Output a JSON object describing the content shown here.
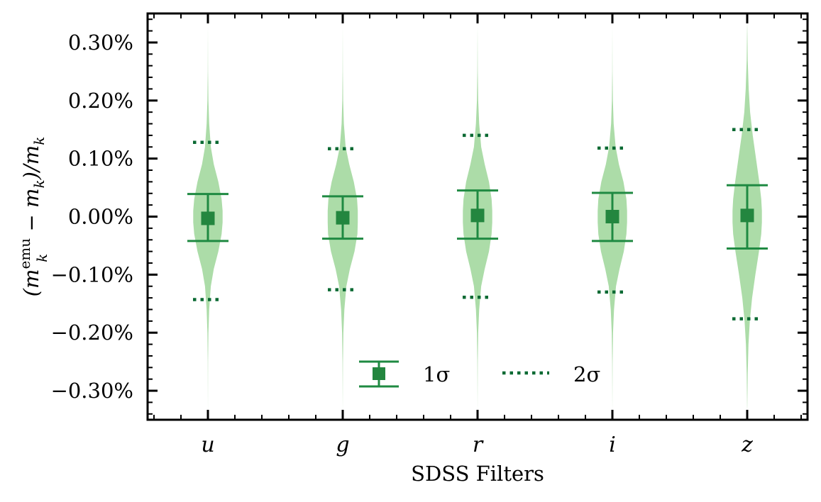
{
  "colors": {
    "violin_fill": "#acdca8",
    "marker": "#23863f",
    "errorbar": "#1f8a42",
    "dotted": "#0b6a33",
    "axis": "#000000"
  },
  "chart_data": {
    "type": "violin",
    "xlabel": "SDSS Filters",
    "ylabel": "(m_k^emu − m_k)/m_k",
    "ylabel_parts": {
      "open": "(m",
      "sup": "emu",
      "sub1": "k",
      "mid": " − m",
      "sub2": "k",
      "close": ")/m",
      "sub3": "k"
    },
    "categories": [
      "u",
      "g",
      "r",
      "i",
      "z"
    ],
    "ylim": [
      -0.35,
      0.35
    ],
    "y_unit": "%",
    "yticks": [
      -0.3,
      -0.2,
      -0.1,
      0.0,
      0.1,
      0.2,
      0.3
    ],
    "ytick_labels": [
      "−0.30%",
      "−0.20%",
      "−0.10%",
      "0.00%",
      "0.10%",
      "0.20%",
      "0.30%"
    ],
    "series": [
      {
        "name": "1σ",
        "kind": "median-errorbar",
        "center": [
          -0.003,
          -0.002,
          0.002,
          0.0,
          0.002
        ],
        "lower": [
          -0.042,
          -0.038,
          -0.038,
          -0.042,
          -0.055
        ],
        "upper": [
          0.039,
          0.035,
          0.045,
          0.041,
          0.054
        ]
      },
      {
        "name": "2σ",
        "kind": "dotted-bounds",
        "lower": [
          -0.143,
          -0.126,
          -0.139,
          -0.13,
          -0.176
        ],
        "upper": [
          0.128,
          0.117,
          0.14,
          0.118,
          0.15
        ]
      }
    ],
    "violins": [
      {
        "category": "u",
        "ys": [
          -0.33,
          -0.25,
          -0.2,
          -0.16,
          -0.12,
          -0.09,
          -0.06,
          -0.03,
          -0.01,
          0.01,
          0.03,
          0.06,
          0.09,
          0.12,
          0.16,
          0.2,
          0.25,
          0.33
        ],
        "widths": [
          0.001,
          0.005,
          0.015,
          0.04,
          0.09,
          0.18,
          0.32,
          0.42,
          0.45,
          0.45,
          0.42,
          0.32,
          0.18,
          0.09,
          0.04,
          0.015,
          0.005,
          0.001
        ]
      },
      {
        "category": "g",
        "ys": [
          -0.33,
          -0.25,
          -0.2,
          -0.16,
          -0.12,
          -0.09,
          -0.06,
          -0.03,
          -0.01,
          0.01,
          0.03,
          0.06,
          0.09,
          0.12,
          0.16,
          0.2,
          0.25,
          0.33
        ],
        "widths": [
          0.001,
          0.006,
          0.02,
          0.05,
          0.11,
          0.22,
          0.36,
          0.45,
          0.46,
          0.46,
          0.44,
          0.34,
          0.2,
          0.09,
          0.035,
          0.012,
          0.004,
          0.001
        ]
      },
      {
        "category": "r",
        "ys": [
          -0.33,
          -0.25,
          -0.2,
          -0.16,
          -0.12,
          -0.09,
          -0.06,
          -0.03,
          -0.01,
          0.01,
          0.03,
          0.06,
          0.09,
          0.12,
          0.16,
          0.2,
          0.25,
          0.33
        ],
        "widths": [
          0.001,
          0.006,
          0.02,
          0.05,
          0.11,
          0.22,
          0.35,
          0.43,
          0.45,
          0.45,
          0.43,
          0.35,
          0.22,
          0.11,
          0.05,
          0.02,
          0.006,
          0.001
        ]
      },
      {
        "category": "i",
        "ys": [
          -0.33,
          -0.25,
          -0.2,
          -0.16,
          -0.12,
          -0.09,
          -0.06,
          -0.03,
          -0.01,
          0.01,
          0.03,
          0.06,
          0.09,
          0.12,
          0.16,
          0.2,
          0.25,
          0.33
        ],
        "widths": [
          0.001,
          0.006,
          0.02,
          0.05,
          0.11,
          0.22,
          0.35,
          0.43,
          0.45,
          0.45,
          0.43,
          0.34,
          0.2,
          0.1,
          0.04,
          0.015,
          0.005,
          0.001
        ]
      },
      {
        "category": "z",
        "ys": [
          -0.33,
          -0.27,
          -0.22,
          -0.18,
          -0.14,
          -0.1,
          -0.06,
          -0.03,
          -0.01,
          0.01,
          0.03,
          0.06,
          0.1,
          0.14,
          0.18,
          0.22,
          0.27,
          0.33
        ],
        "widths": [
          0.002,
          0.015,
          0.04,
          0.08,
          0.15,
          0.25,
          0.36,
          0.43,
          0.45,
          0.45,
          0.43,
          0.37,
          0.27,
          0.17,
          0.09,
          0.045,
          0.015,
          0.003
        ]
      }
    ],
    "legend": {
      "placement": "lower-center",
      "entries": [
        "1σ",
        "2σ"
      ]
    }
  }
}
